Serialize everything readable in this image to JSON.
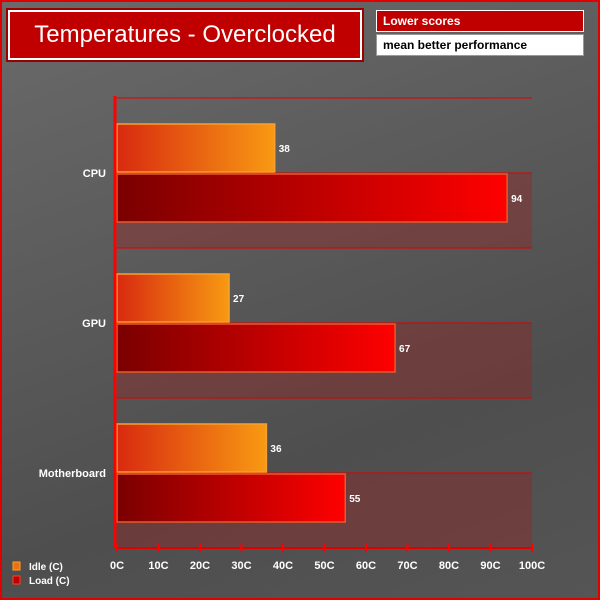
{
  "header": {
    "title": "Temperatures - Overclocked",
    "note_line1": "Lower scores",
    "note_line2": "mean better performance"
  },
  "chart_data": {
    "type": "bar",
    "orientation": "horizontal",
    "title": "Temperatures - Overclocked",
    "categories": [
      "CPU",
      "GPU",
      "Motherboard"
    ],
    "series": [
      {
        "name": "Idle (C)",
        "values": [
          38,
          27,
          36
        ],
        "color": "#f7941d"
      },
      {
        "name": "Load (C)",
        "values": [
          94,
          67,
          55
        ],
        "color": "#ff0000"
      }
    ],
    "xlim": [
      0,
      100
    ],
    "xticks": [
      "0C",
      "10C",
      "20C",
      "30C",
      "40C",
      "50C",
      "60C",
      "70C",
      "80C",
      "90C",
      "100C"
    ],
    "legend": "bottom-left",
    "grid": true
  }
}
